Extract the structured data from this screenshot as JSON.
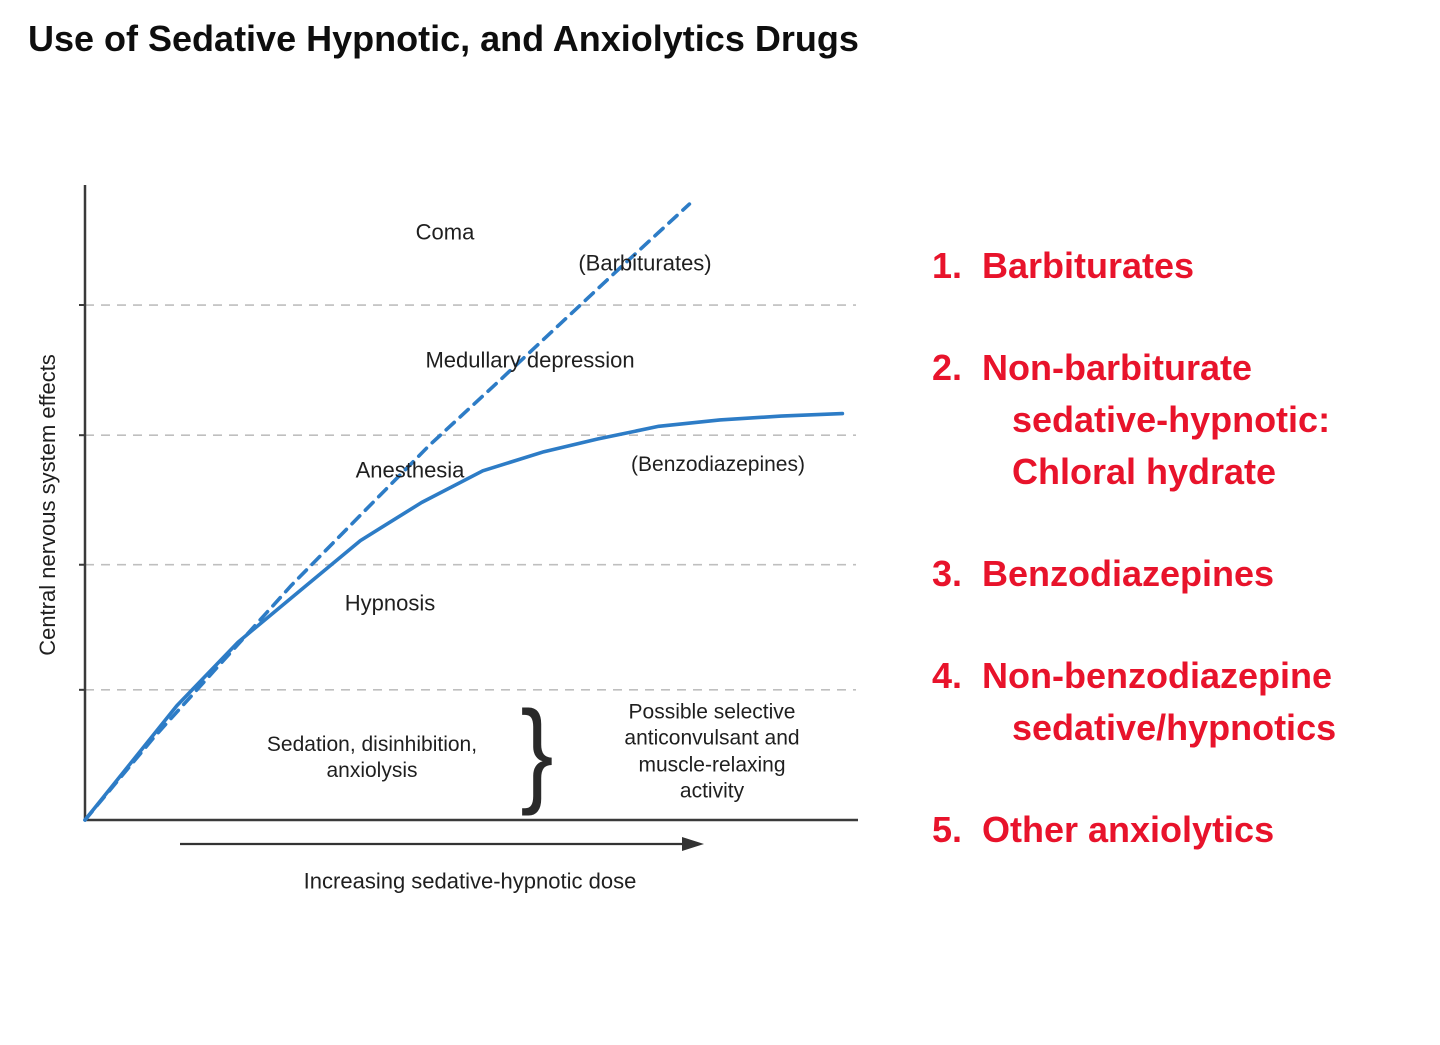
{
  "title": "Use of Sedative Hypnotic, and Anxiolytics Drugs",
  "colors": {
    "curve_blue": "#2d7cc6",
    "list_red": "#e8132b",
    "grid_gray": "#bfbfbf",
    "axis_dark": "#3a3a3a"
  },
  "chart_data": {
    "type": "line",
    "title": "",
    "xlabel": "Increasing sedative-hypnotic dose",
    "ylabel": "Central nervous system effects",
    "x_range": [
      0,
      1
    ],
    "y_range": [
      0,
      1
    ],
    "grid": "horizontal-dashed",
    "gridline_levels": [
      0.205,
      0.402,
      0.606,
      0.811
    ],
    "series": [
      {
        "name": "Barbiturates",
        "style": "dashed",
        "color": "#2d7cc6",
        "x": [
          0,
          0.09,
          0.18,
          0.27,
          0.36,
          0.45,
          0.54,
          0.62,
          0.7,
          0.79
        ],
        "y": [
          0,
          0.13,
          0.25,
          0.37,
          0.48,
          0.59,
          0.69,
          0.78,
          0.87,
          0.97
        ]
      },
      {
        "name": "Benzodiazepines",
        "style": "solid",
        "color": "#2d7cc6",
        "x": [
          0,
          0.06,
          0.12,
          0.2,
          0.28,
          0.36,
          0.44,
          0.52,
          0.6,
          0.67,
          0.75,
          0.83,
          0.91,
          0.99
        ],
        "y": [
          0,
          0.09,
          0.18,
          0.28,
          0.36,
          0.44,
          0.5,
          0.55,
          0.58,
          0.6,
          0.62,
          0.63,
          0.636,
          0.64
        ]
      }
    ],
    "annotations": {
      "coma": "Coma",
      "barbiturates_label": "(Barbiturates)",
      "medullary": "Medullary depression",
      "anesthesia": "Anesthesia",
      "benzodiazepines_label": "(Benzodiazepines)",
      "hypnosis": "Hypnosis",
      "sedation": "Sedation, disinhibition,\nanxiolysis",
      "brace": "}",
      "possible": "Possible selective\nanticonvulsant and\nmuscle-relaxing activity"
    }
  },
  "drug_list": {
    "items": [
      {
        "num": "1.",
        "lines": [
          "Barbiturates"
        ]
      },
      {
        "num": "2.",
        "lines": [
          "Non-barbiturate",
          "sedative-hypnotic:",
          "Chloral hydrate"
        ]
      },
      {
        "num": "3.",
        "lines": [
          "Benzodiazepines"
        ]
      },
      {
        "num": "4.",
        "lines": [
          "Non-benzodiazepine",
          "sedative/hypnotics"
        ]
      },
      {
        "num": "5.",
        "lines": [
          "Other anxiolytics"
        ]
      }
    ]
  }
}
